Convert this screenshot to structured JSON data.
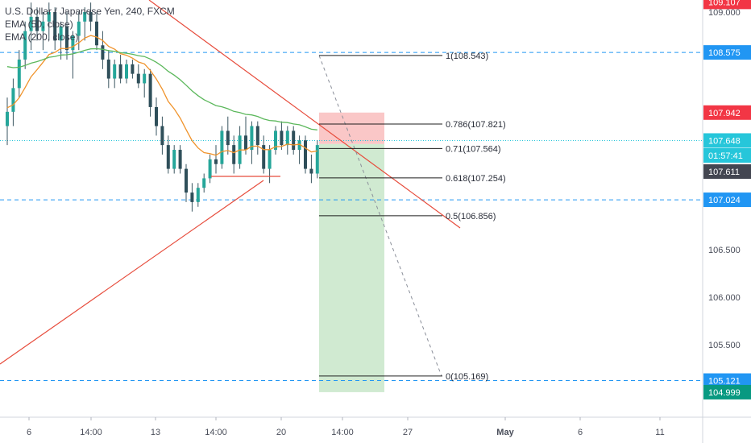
{
  "legend": {
    "symbol": "U.S. Dollar / Japanese Yen, 240, FXCM",
    "ema50": "EMA (50, close)",
    "ema200": "EMA (200, close)"
  },
  "colors": {
    "up": "#26a69a",
    "down": "#2f4f5a",
    "candle_wick": "#3a5660",
    "ema50": "#f0932b",
    "ema200": "#5cb85c",
    "trendline": "#e74c3c",
    "dashed_level": "#2196f3",
    "stop_zone": "#f8b4b4",
    "target_zone": "#c8e6c9",
    "price_axis_blue": "#2196f3",
    "price_axis_red": "#f23645",
    "price_axis_dark": "#434651",
    "price_axis_green": "#089981",
    "price_axis_cyan": "#26c6da"
  },
  "chart_data": {
    "type": "candlestick",
    "ylim": [
      104.9,
      109.15
    ],
    "y_ticks": [
      "109.000",
      "106.500",
      "106.000",
      "105.500",
      "105.000"
    ],
    "x_ticks": [
      "6",
      "14:00",
      "13",
      "14:00",
      "20",
      "14:00",
      "27",
      "May",
      "6",
      "11"
    ],
    "price_labels": [
      {
        "text": "109.107",
        "value": 109.107,
        "style": "red"
      },
      {
        "text": "108.575",
        "value": 108.575,
        "style": "blue"
      },
      {
        "text": "107.942",
        "value": 107.942,
        "style": "red"
      },
      {
        "text": "107.648",
        "value": 107.648,
        "style": "cyan"
      },
      {
        "text": "01:57:41",
        "value": 107.52,
        "style": "cyan"
      },
      {
        "text": "107.611",
        "value": 107.611,
        "style": "dark"
      },
      {
        "text": "107.024",
        "value": 107.024,
        "style": "blue"
      },
      {
        "text": "105.121",
        "value": 105.121,
        "style": "blue"
      },
      {
        "text": "104.999",
        "value": 104.999,
        "style": "green"
      }
    ],
    "horizontal_levels": [
      108.575,
      107.024,
      105.121
    ],
    "current_price": 107.648,
    "fibonacci": [
      {
        "label": "1(108.543)",
        "value": 108.543
      },
      {
        "label": "0.786(107.821)",
        "value": 107.821
      },
      {
        "label": "0.71(107.564)",
        "value": 107.564
      },
      {
        "label": "0.618(107.254)",
        "value": 107.254
      },
      {
        "label": "0.5(106.856)",
        "value": 106.856
      },
      {
        "label": "0(105.169)",
        "value": 105.169
      }
    ],
    "position": {
      "entry": 107.611,
      "stop": 107.942,
      "target": 104.999
    },
    "candles": [
      [
        107.8,
        108.1,
        107.6,
        107.95
      ],
      [
        107.95,
        108.3,
        107.8,
        108.2
      ],
      [
        108.2,
        108.6,
        108.1,
        108.5
      ],
      [
        108.5,
        108.9,
        108.4,
        108.8
      ],
      [
        108.8,
        109.1,
        108.6,
        108.95
      ],
      [
        108.95,
        109.05,
        108.7,
        108.8
      ],
      [
        108.8,
        109.0,
        108.6,
        108.9
      ],
      [
        108.9,
        109.1,
        108.7,
        109.0
      ],
      [
        109.0,
        109.05,
        108.6,
        108.7
      ],
      [
        108.7,
        108.9,
        108.5,
        108.85
      ],
      [
        108.85,
        109.0,
        108.5,
        108.6
      ],
      [
        108.6,
        108.8,
        108.3,
        108.75
      ],
      [
        108.75,
        109.0,
        108.6,
        108.9
      ],
      [
        108.9,
        109.05,
        108.7,
        109.0
      ],
      [
        109.0,
        109.1,
        108.8,
        108.9
      ],
      [
        108.9,
        109.0,
        108.6,
        108.65
      ],
      [
        108.65,
        108.8,
        108.4,
        108.5
      ],
      [
        108.5,
        108.6,
        108.2,
        108.3
      ],
      [
        108.3,
        108.5,
        108.2,
        108.45
      ],
      [
        108.45,
        108.55,
        108.25,
        108.3
      ],
      [
        108.3,
        108.5,
        108.25,
        108.45
      ],
      [
        108.45,
        108.5,
        108.3,
        108.35
      ],
      [
        108.35,
        108.45,
        108.2,
        108.25
      ],
      [
        108.25,
        108.4,
        108.1,
        108.35
      ],
      [
        108.35,
        108.4,
        107.9,
        108.0
      ],
      [
        108.0,
        108.1,
        107.7,
        107.8
      ],
      [
        107.8,
        107.9,
        107.5,
        107.6
      ],
      [
        107.6,
        107.7,
        107.3,
        107.35
      ],
      [
        107.35,
        107.6,
        107.3,
        107.55
      ],
      [
        107.55,
        107.6,
        107.3,
        107.35
      ],
      [
        107.35,
        107.4,
        107.0,
        107.1
      ],
      [
        107.1,
        107.2,
        106.9,
        107.0
      ],
      [
        107.0,
        107.2,
        106.95,
        107.15
      ],
      [
        107.15,
        107.3,
        107.1,
        107.25
      ],
      [
        107.25,
        107.5,
        107.2,
        107.45
      ],
      [
        107.45,
        107.6,
        107.3,
        107.4
      ],
      [
        107.4,
        107.8,
        107.35,
        107.75
      ],
      [
        107.75,
        107.9,
        107.5,
        107.6
      ],
      [
        107.6,
        107.7,
        107.3,
        107.4
      ],
      [
        107.4,
        107.8,
        107.35,
        107.7
      ],
      [
        107.7,
        107.9,
        107.5,
        107.55
      ],
      [
        107.55,
        107.85,
        107.4,
        107.8
      ],
      [
        107.8,
        107.85,
        107.5,
        107.6
      ],
      [
        107.6,
        107.7,
        107.3,
        107.35
      ],
      [
        107.35,
        107.6,
        107.2,
        107.55
      ],
      [
        107.55,
        107.8,
        107.5,
        107.75
      ],
      [
        107.75,
        107.85,
        107.55,
        107.6
      ],
      [
        107.6,
        107.8,
        107.5,
        107.75
      ],
      [
        107.75,
        107.8,
        107.5,
        107.55
      ],
      [
        107.55,
        107.7,
        107.4,
        107.65
      ],
      [
        107.65,
        107.7,
        107.3,
        107.35
      ],
      [
        107.35,
        107.5,
        107.2,
        107.3
      ],
      [
        107.3,
        107.65,
        107.25,
        107.6
      ]
    ]
  }
}
